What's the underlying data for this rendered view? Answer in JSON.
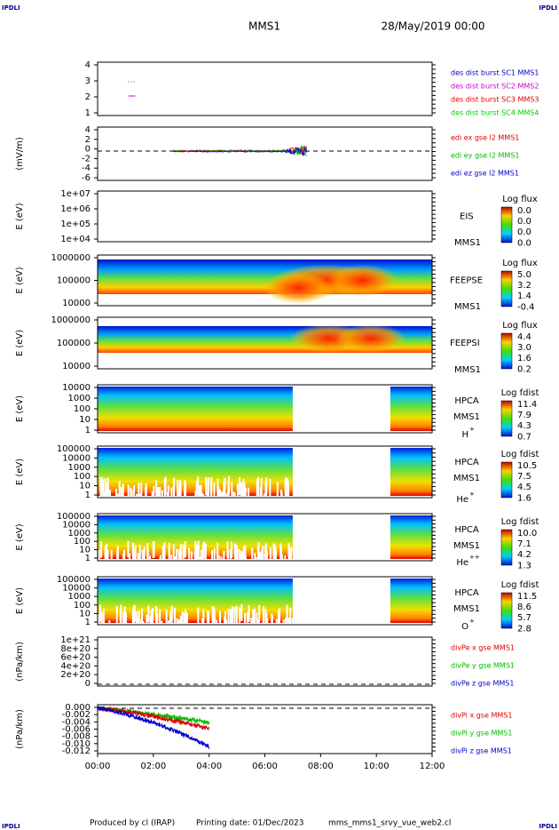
{
  "header": {
    "corner_left": "IPDLI",
    "corner_right": "IPDLI",
    "spacecraft": "MMS1",
    "date": "28/May/2019 00:00"
  },
  "footer": {
    "corner_left": "IPDLI",
    "corner_right": "IPDLI",
    "credit": "Produced by cl (IRAP)",
    "printing": "Printing date: 01/Dec/2023",
    "file": "mms_mms1_srvy_vue_web2.cl"
  },
  "xticks": [
    "00:00",
    "02:00",
    "04:00",
    "06:00",
    "08:00",
    "10:00",
    "12:00"
  ],
  "panels": [
    {
      "yticks": [
        "4",
        "3",
        "2",
        "1"
      ],
      "legend": [
        {
          "text": "des dist burst SC1 MMS1",
          "color": "#0000cc"
        },
        {
          "text": "des dist burst SC2 MMS2",
          "color": "#cc00cc"
        },
        {
          "text": "des dist burst SC3 MMS3",
          "color": "#dd0000"
        },
        {
          "text": "des dist burst SC4 MMS4",
          "color": "#00cc00"
        }
      ]
    },
    {
      "ylabel": "(mV/m)",
      "yticks": [
        "4",
        "2",
        "0",
        "-2",
        "-4",
        "-6"
      ],
      "legend": [
        {
          "text": "edi ex gse l2 MMS1",
          "color": "#dd0000"
        },
        {
          "text": "edi ey gse l2 MMS1",
          "color": "#00bb00"
        },
        {
          "text": "edi ez gse l2 MMS1",
          "color": "#0000cc"
        }
      ]
    },
    {
      "ylabel": "E (eV)",
      "yticks": [
        "1e+07",
        "1e+06",
        "1e+05",
        "1e+04"
      ],
      "instrument": "EIS",
      "spacecraft": "MMS1",
      "cbar_title": "Log flux",
      "cbar_ticks": [
        "0.0",
        "0.0",
        "0.0",
        "0.0"
      ]
    },
    {
      "ylabel": "E (eV)",
      "yticks": [
        "1000000",
        "100000",
        "10000"
      ],
      "instrument": "FEEPSE",
      "spacecraft": "MMS1",
      "cbar_title": "Log flux",
      "cbar_ticks": [
        "5.0",
        "3.2",
        "1.4",
        "-0.4"
      ]
    },
    {
      "ylabel": "E (eV)",
      "yticks": [
        "1000000",
        "100000",
        "10000"
      ],
      "instrument": "FEEPSI",
      "spacecraft": "MMS1",
      "cbar_title": "Log flux",
      "cbar_ticks": [
        "4.4",
        "3.0",
        "1.6",
        "0.2"
      ]
    },
    {
      "ylabel": "E (eV)",
      "yticks": [
        "10000",
        "1000",
        "100",
        "10",
        "1"
      ],
      "instrument": "HPCA",
      "spacecraft": "MMS1",
      "species": {
        "base": "H",
        "sup": "+"
      },
      "cbar_title": "Log fdist",
      "cbar_ticks": [
        "11.4",
        "7.9",
        "4.3",
        "0.7"
      ]
    },
    {
      "ylabel": "E (eV)",
      "yticks": [
        "100000",
        "10000",
        "1000",
        "100",
        "10",
        "1"
      ],
      "instrument": "HPCA",
      "spacecraft": "MMS1",
      "species": {
        "base": "He",
        "sup": "+"
      },
      "cbar_title": "Log fdist",
      "cbar_ticks": [
        "10.5",
        "7.5",
        "4.5",
        "1.6"
      ]
    },
    {
      "ylabel": "E (eV)",
      "yticks": [
        "100000",
        "10000",
        "1000",
        "100",
        "10",
        "1"
      ],
      "instrument": "HPCA",
      "spacecraft": "MMS1",
      "species": {
        "base": "He",
        "sup": "++"
      },
      "cbar_title": "Log fdist",
      "cbar_ticks": [
        "10.0",
        "7.1",
        "4.2",
        "1.3"
      ]
    },
    {
      "ylabel": "E (eV)",
      "yticks": [
        "100000",
        "10000",
        "1000",
        "100",
        "10",
        "1"
      ],
      "instrument": "HPCA",
      "spacecraft": "MMS1",
      "species": {
        "base": "O",
        "sup": "+"
      },
      "cbar_title": "Log fdist",
      "cbar_ticks": [
        "11.5",
        "8.6",
        "5.7",
        "2.8"
      ]
    },
    {
      "ylabel": "(nPa/km)",
      "yticks": [
        "1e+21",
        "8e+20",
        "6e+20",
        "4e+20",
        "2e+20",
        "0"
      ],
      "legend": [
        {
          "text": "divPe x gse MMS1",
          "color": "#dd0000"
        },
        {
          "text": "divPe y gse MMS1",
          "color": "#00bb00"
        },
        {
          "text": "divPe z gse MMS1",
          "color": "#0000cc"
        }
      ]
    },
    {
      "ylabel": "(nPa/km)",
      "yticks": [
        "0.000",
        "-0.002",
        "-0.004",
        "-0.006",
        "-0.008",
        "-0.010",
        "-0.012"
      ],
      "legend": [
        {
          "text": "divPi x gse MMS1",
          "color": "#dd0000"
        },
        {
          "text": "divPi y gse MMS1",
          "color": "#00bb00"
        },
        {
          "text": "divPi z gse MMS1",
          "color": "#0000cc"
        }
      ]
    }
  ]
}
